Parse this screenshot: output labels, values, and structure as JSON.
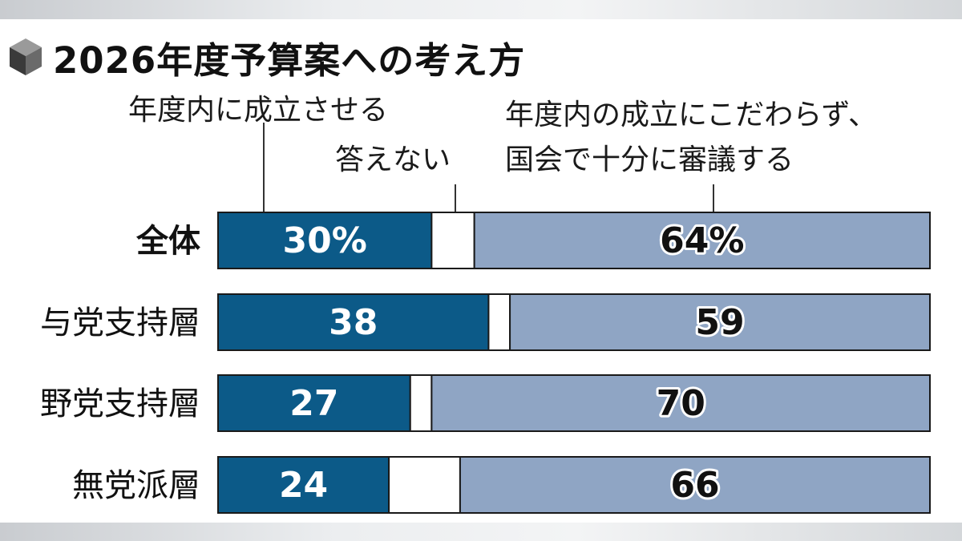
{
  "colors": {
    "yes": "#0c5a88",
    "dk": "#ffffff",
    "no": "#8fa5c4",
    "outline": "#1a1a1a",
    "text_dark": "#111111"
  },
  "chart_data": {
    "type": "bar",
    "orientation": "horizontal",
    "stacked": true,
    "title": "2026年度予算案への考え方",
    "unit": "%",
    "categories": [
      "全体",
      "与党支持層",
      "野党支持層",
      "無党派層"
    ],
    "series": [
      {
        "name": "年度内に成立させる",
        "color": "#0c5a88",
        "values": [
          30,
          38,
          27,
          24
        ],
        "labels": [
          "30%",
          "38",
          "27",
          "24"
        ]
      },
      {
        "name": "答えない",
        "color": "#ffffff",
        "values": [
          6,
          3,
          3,
          10
        ],
        "labels": [
          "",
          "",
          "",
          ""
        ]
      },
      {
        "name": "年度内の成立にこだわらず、国会で十分に審議する",
        "color": "#8fa5c4",
        "values": [
          64,
          59,
          70,
          66
        ],
        "labels": [
          "64%",
          "59",
          "70",
          "66"
        ]
      }
    ],
    "xlim": [
      0,
      100
    ],
    "grid": false,
    "legend": "top (callout labels with leader lines)"
  },
  "legend_labels": {
    "yes": "年度内に成立させる",
    "dk": "答えない",
    "no_line1": "年度内の成立にこだわらず、",
    "no_line2": "国会で十分に審議する"
  }
}
